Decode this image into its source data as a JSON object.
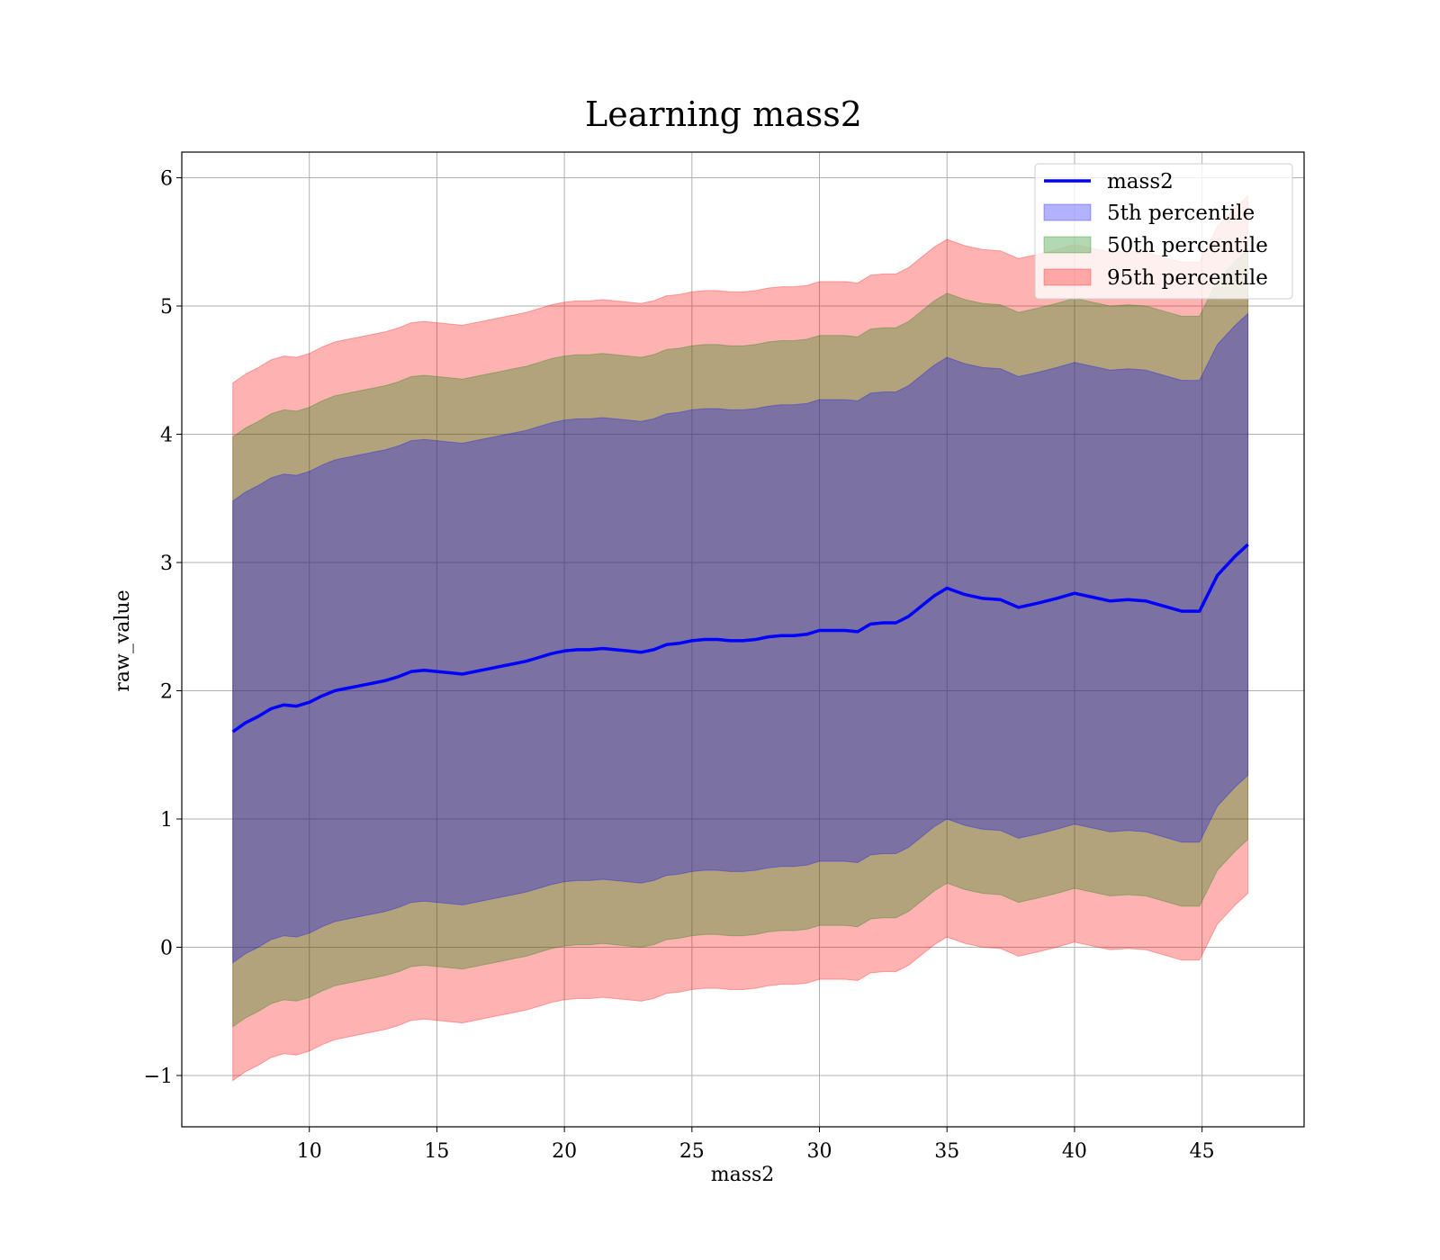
{
  "chart_data": {
    "type": "area",
    "title": "Learning mass2",
    "xlabel": "mass2",
    "ylabel": "raw_value",
    "xlim": [
      5,
      49
    ],
    "ylim": [
      -1.4,
      6.2
    ],
    "x_ticks": [
      10,
      15,
      20,
      25,
      30,
      35,
      40,
      45
    ],
    "x_tick_labels": [
      "10",
      "15",
      "20",
      "25",
      "30",
      "35",
      "40",
      "45"
    ],
    "y_ticks": [
      -1,
      0,
      1,
      2,
      3,
      4,
      5,
      6
    ],
    "y_tick_labels": [
      "−1",
      "0",
      "1",
      "2",
      "3",
      "4",
      "5",
      "6"
    ],
    "grid": true,
    "legend_position": "top-right",
    "x": [
      7.0,
      7.5,
      8.0,
      8.5,
      9.0,
      9.5,
      10.0,
      10.5,
      11.0,
      11.5,
      12.0,
      12.5,
      13.0,
      13.5,
      14.0,
      14.5,
      15.0,
      15.5,
      16.0,
      16.5,
      17.0,
      17.5,
      18.0,
      18.5,
      19.0,
      19.5,
      20.0,
      20.5,
      21.0,
      21.5,
      22.0,
      22.5,
      23.0,
      23.5,
      24.0,
      24.5,
      25.0,
      25.5,
      26.0,
      26.5,
      27.0,
      27.5,
      28.0,
      28.5,
      29.0,
      29.5,
      30.0,
      30.5,
      31.0,
      31.5,
      32.0,
      32.5,
      33.0,
      33.5,
      34.0,
      34.5,
      35.0,
      35.7,
      36.4,
      37.1,
      37.8,
      38.5,
      39.3,
      40.0,
      40.7,
      41.4,
      42.1,
      42.8,
      43.5,
      44.2,
      44.9,
      45.6,
      46.3,
      46.8
    ],
    "band_offsets": {
      "5th": [
        -1.8,
        1.8
      ],
      "50th": [
        -2.3,
        2.3
      ],
      "95th": [
        -2.72,
        2.72
      ]
    },
    "series": [
      {
        "name": "mass2",
        "type": "line",
        "color": "#0000ff",
        "values": [
          1.68,
          1.75,
          1.8,
          1.86,
          1.89,
          1.88,
          1.91,
          1.96,
          2.0,
          2.02,
          2.04,
          2.06,
          2.08,
          2.11,
          2.15,
          2.16,
          2.15,
          2.14,
          2.13,
          2.15,
          2.17,
          2.19,
          2.21,
          2.23,
          2.26,
          2.29,
          2.31,
          2.32,
          2.32,
          2.33,
          2.32,
          2.31,
          2.3,
          2.32,
          2.36,
          2.37,
          2.39,
          2.4,
          2.4,
          2.39,
          2.39,
          2.4,
          2.42,
          2.43,
          2.43,
          2.44,
          2.47,
          2.47,
          2.47,
          2.46,
          2.52,
          2.53,
          2.53,
          2.58,
          2.66,
          2.74,
          2.8,
          2.75,
          2.72,
          2.71,
          2.65,
          2.68,
          2.72,
          2.76,
          2.73,
          2.7,
          2.71,
          2.7,
          2.66,
          2.62,
          2.62,
          2.9,
          3.05,
          3.14
        ]
      },
      {
        "name": "5th percentile",
        "type": "band",
        "color": "#0000ff",
        "alpha": 0.3
      },
      {
        "name": "50th percentile",
        "type": "band",
        "color": "#008000",
        "alpha": 0.3
      },
      {
        "name": "95th percentile",
        "type": "band",
        "color": "#ff0000",
        "alpha": 0.3
      }
    ]
  }
}
